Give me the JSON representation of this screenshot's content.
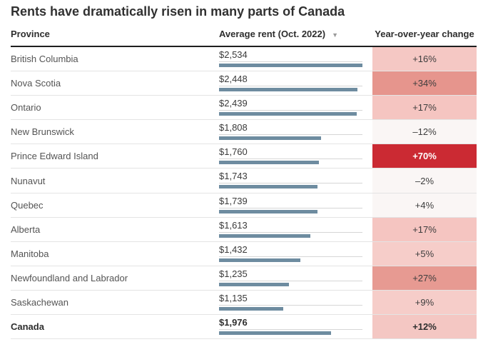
{
  "title": "Rents have dramatically risen in many parts of Canada",
  "columns": {
    "province": "Province",
    "rent": "Average rent (Oct. 2022)",
    "change": "Year-over-year change",
    "sort_icon": "▼"
  },
  "colors": {
    "bar": "#6e8ca0",
    "header_rule": "#1f1f1f",
    "row_rule": "#e4e4e4",
    "strong_red": "#cb2a33"
  },
  "rent_axis_max": 2534,
  "rows": [
    {
      "province": "British Columbia",
      "rent_label": "$2,534",
      "rent_value": 2534,
      "change_label": "+16%",
      "change_bg": "#f5c8c4",
      "change_text": "#3d3d3d",
      "bold": false
    },
    {
      "province": "Nova Scotia",
      "rent_label": "$2,448",
      "rent_value": 2448,
      "change_label": "+34%",
      "change_bg": "#e6958d",
      "change_text": "#3d3d3d",
      "bold": false
    },
    {
      "province": "Ontario",
      "rent_label": "$2,439",
      "rent_value": 2439,
      "change_label": "+17%",
      "change_bg": "#f5c5c1",
      "change_text": "#3d3d3d",
      "bold": false
    },
    {
      "province": "New Brunswick",
      "rent_label": "$1,808",
      "rent_value": 1808,
      "change_label": "–12%",
      "change_bg": "#faf6f5",
      "change_text": "#3d3d3d",
      "bold": false
    },
    {
      "province": "Prince Edward Island",
      "rent_label": "$1,760",
      "rent_value": 1760,
      "change_label": "+70%",
      "change_bg": "#cb2a33",
      "change_text": "#ffffff",
      "bold": false,
      "bold_change": true
    },
    {
      "province": "Nunavut",
      "rent_label": "$1,743",
      "rent_value": 1743,
      "change_label": "–2%",
      "change_bg": "#faf6f5",
      "change_text": "#3d3d3d",
      "bold": false
    },
    {
      "province": "Quebec",
      "rent_label": "$1,739",
      "rent_value": 1739,
      "change_label": "+4%",
      "change_bg": "#faf6f5",
      "change_text": "#3d3d3d",
      "bold": false
    },
    {
      "province": "Alberta",
      "rent_label": "$1,613",
      "rent_value": 1613,
      "change_label": "+17%",
      "change_bg": "#f5c5c1",
      "change_text": "#3d3d3d",
      "bold": false
    },
    {
      "province": "Manitoba",
      "rent_label": "$1,432",
      "rent_value": 1432,
      "change_label": "+5%",
      "change_bg": "#f6cdc9",
      "change_text": "#3d3d3d",
      "bold": false
    },
    {
      "province": "Newfoundland and Labrador",
      "rent_label": "$1,235",
      "rent_value": 1235,
      "change_label": "+27%",
      "change_bg": "#e79a92",
      "change_text": "#3d3d3d",
      "bold": false
    },
    {
      "province": "Saskachewan",
      "rent_label": "$1,135",
      "rent_value": 1135,
      "change_label": "+9%",
      "change_bg": "#f6cdc9",
      "change_text": "#3d3d3d",
      "bold": false
    },
    {
      "province": "Canada",
      "rent_label": "$1,976",
      "rent_value": 1976,
      "change_label": "+12%",
      "change_bg": "#f4c7c3",
      "change_text": "#2e2e2e",
      "bold": true
    }
  ],
  "chart_data": {
    "type": "bar",
    "orientation": "horizontal",
    "title": "Rents have dramatically risen in many parts of Canada",
    "categories": [
      "British Columbia",
      "Nova Scotia",
      "Ontario",
      "New Brunswick",
      "Prince Edward Island",
      "Nunavut",
      "Quebec",
      "Alberta",
      "Manitoba",
      "Newfoundland and Labrador",
      "Saskachewan",
      "Canada"
    ],
    "series": [
      {
        "name": "Average rent (Oct. 2022)",
        "unit": "CAD",
        "values": [
          2534,
          2448,
          2439,
          1808,
          1760,
          1743,
          1739,
          1613,
          1432,
          1235,
          1135,
          1976
        ]
      },
      {
        "name": "Year-over-year change",
        "unit": "%",
        "values": [
          16,
          34,
          17,
          -12,
          70,
          -2,
          4,
          17,
          5,
          27,
          9,
          12
        ]
      }
    ],
    "xlabel": "",
    "ylabel": "",
    "xlim": [
      0,
      2534
    ],
    "grid": false,
    "legend_position": "none"
  }
}
